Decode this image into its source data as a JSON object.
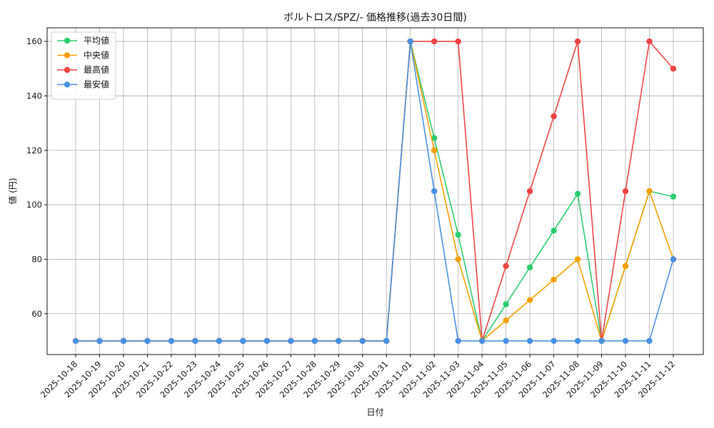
{
  "chart_data": {
    "type": "line",
    "title": "ボルトロス/SPZ/- 価格推移(過去30日間)",
    "xlabel": "日付",
    "ylabel": "値 (円)",
    "ylim": [
      45,
      165
    ],
    "yticks": [
      60,
      80,
      100,
      120,
      140,
      160
    ],
    "grid": true,
    "legend_position": "top-left",
    "x": [
      "2025-10-18",
      "2025-10-19",
      "2025-10-20",
      "2025-10-21",
      "2025-10-22",
      "2025-10-23",
      "2025-10-24",
      "2025-10-25",
      "2025-10-26",
      "2025-10-27",
      "2025-10-28",
      "2025-10-29",
      "2025-10-30",
      "2025-10-31",
      "2025-11-01",
      "2025-11-02",
      "2025-11-03",
      "2025-11-04",
      "2025-11-05",
      "2025-11-06",
      "2025-11-07",
      "2025-11-08",
      "2025-11-09",
      "2025-11-10",
      "2025-11-11",
      "2025-11-12"
    ],
    "series": [
      {
        "name": "平均値",
        "color": "#2ecc71",
        "values": [
          50,
          50,
          50,
          50,
          50,
          50,
          50,
          50,
          50,
          50,
          50,
          50,
          50,
          50,
          160,
          124.5,
          89,
          50,
          63.5,
          77,
          90.5,
          104,
          50,
          77.5,
          105,
          103
        ]
      },
      {
        "name": "中央値",
        "color": "#f5a000",
        "values": [
          50,
          50,
          50,
          50,
          50,
          50,
          50,
          50,
          50,
          50,
          50,
          50,
          50,
          50,
          160,
          120,
          80,
          50,
          57.5,
          65,
          72.5,
          80,
          50,
          77.5,
          105,
          80
        ]
      },
      {
        "name": "最高値",
        "color": "#ef4444",
        "values": [
          50,
          50,
          50,
          50,
          50,
          50,
          50,
          50,
          50,
          50,
          50,
          50,
          50,
          50,
          160,
          160,
          160,
          50,
          77.5,
          105,
          132.5,
          160,
          50,
          105,
          160,
          150
        ]
      },
      {
        "name": "最安値",
        "color": "#4a90e2",
        "values": [
          50,
          50,
          50,
          50,
          50,
          50,
          50,
          50,
          50,
          50,
          50,
          50,
          50,
          50,
          160,
          105,
          50,
          50,
          50,
          50,
          50,
          50,
          50,
          50,
          50,
          80
        ]
      }
    ]
  }
}
